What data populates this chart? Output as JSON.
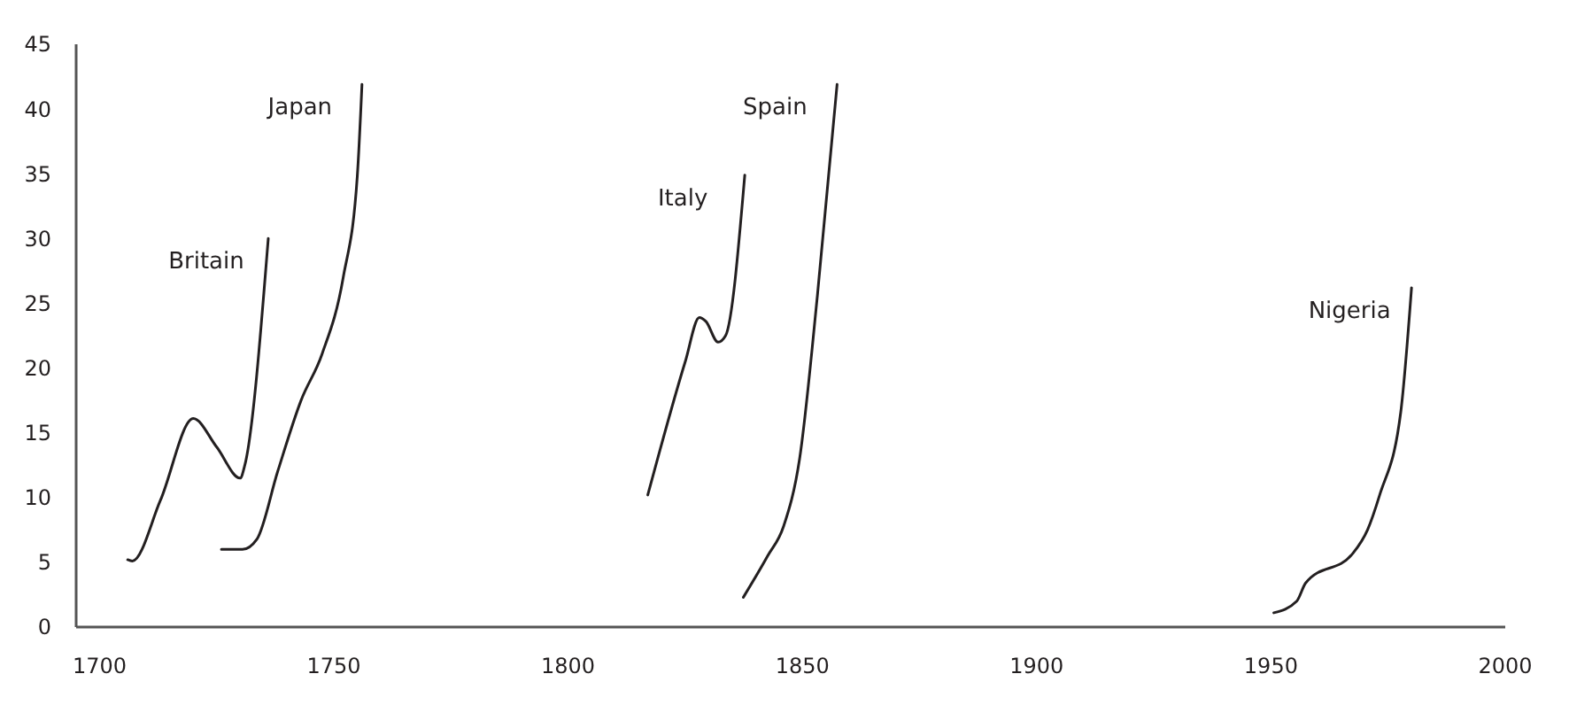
{
  "chart_data": {
    "type": "line",
    "xlim": [
      1695,
      2000
    ],
    "xticks": [
      1700,
      1750,
      1800,
      1850,
      1900,
      1950,
      2000
    ],
    "ylim": [
      0,
      45
    ],
    "yticks": [
      0,
      5,
      10,
      15,
      20,
      25,
      30,
      35,
      40,
      45
    ],
    "grid": false,
    "marker": "none",
    "line_style": "solid",
    "series": [
      {
        "name": "Britain",
        "color": "#231f20",
        "x": [
          1706,
          1707,
          1713,
          1720,
          1725,
          1730,
          1731,
          1736
        ],
        "values": [
          5.2,
          5.1,
          9.8,
          16.1,
          13.9,
          11.5,
          12.5,
          30
        ]
      },
      {
        "name": "Japan",
        "color": "#231f20",
        "x": [
          1726,
          1730.5,
          1733.6,
          1738,
          1743,
          1747.5,
          1752,
          1755,
          1756
        ],
        "values": [
          6,
          6,
          6.8,
          12,
          17.5,
          21.1,
          27,
          34.8,
          41.9
        ]
      },
      {
        "name": "Italy",
        "color": "#231f20",
        "x": [
          1817,
          1825,
          1828,
          1829.4,
          1832,
          1833.6,
          1837.7
        ],
        "values": [
          10.2,
          20.5,
          23.9,
          23.6,
          22,
          22.5,
          34.9
        ]
      },
      {
        "name": "Spain",
        "color": "#231f20",
        "x": [
          1837.4,
          1842.6,
          1846,
          1849.4,
          1853.2,
          1857.4
        ],
        "values": [
          2.3,
          5.5,
          7.8,
          13,
          25.6,
          41.9
        ]
      },
      {
        "name": "Nigeria",
        "color": "#231f20",
        "x": [
          1950.6,
          1955.5,
          1957.4,
          1967.5,
          1970.6,
          1973.2,
          1977.7,
          1980
        ],
        "values": [
          1.1,
          2,
          3.4,
          5.7,
          7.5,
          10.2,
          16.6,
          26.2
        ]
      }
    ]
  }
}
